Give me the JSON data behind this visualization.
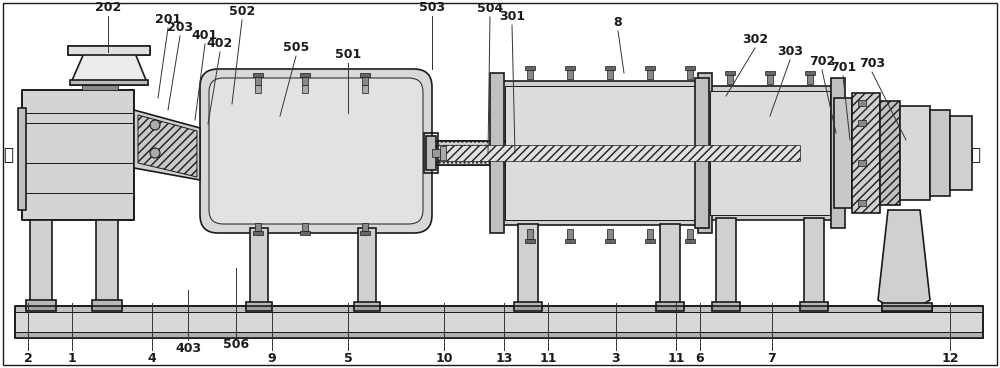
{
  "bg_color": "#ffffff",
  "lc": "#1a1a1a",
  "gray_light": "#e8e8e8",
  "gray_mid": "#d0d0d0",
  "gray_dark": "#a0a0a0",
  "gray_darker": "#606060",
  "hatch_gray": "#c8c8c8",
  "figsize": [
    10.0,
    3.68
  ],
  "dpi": 100,
  "font_size": 9,
  "top_labels": [
    [
      "202",
      108,
      316,
      108,
      352
    ],
    [
      "201",
      158,
      270,
      168,
      340
    ],
    [
      "203",
      168,
      258,
      180,
      332
    ],
    [
      "401",
      195,
      248,
      205,
      324
    ],
    [
      "402",
      208,
      244,
      220,
      316
    ],
    [
      "502",
      232,
      264,
      242,
      348
    ],
    [
      "505",
      280,
      252,
      296,
      312
    ],
    [
      "501",
      348,
      255,
      348,
      305
    ],
    [
      "503",
      432,
      299,
      432,
      352
    ],
    [
      "504",
      488,
      215,
      490,
      351
    ],
    [
      "301",
      515,
      215,
      512,
      343
    ],
    [
      "8",
      624,
      295,
      618,
      337
    ],
    [
      "302",
      726,
      272,
      755,
      320
    ],
    [
      "303",
      770,
      252,
      790,
      308
    ],
    [
      "702",
      836,
      235,
      822,
      298
    ],
    [
      "701",
      850,
      228,
      843,
      292
    ],
    [
      "703",
      906,
      228,
      872,
      296
    ]
  ],
  "bottom_labels": [
    [
      "2",
      28,
      65,
      28,
      18
    ],
    [
      "1",
      72,
      65,
      72,
      18
    ],
    [
      "4",
      152,
      65,
      152,
      18
    ],
    [
      "403",
      188,
      78,
      188,
      28
    ],
    [
      "506",
      236,
      100,
      236,
      32
    ],
    [
      "9",
      272,
      65,
      272,
      18
    ],
    [
      "5",
      348,
      65,
      348,
      18
    ],
    [
      "10",
      444,
      65,
      444,
      18
    ],
    [
      "13",
      504,
      65,
      504,
      18
    ],
    [
      "11",
      548,
      65,
      548,
      18
    ],
    [
      "3",
      616,
      65,
      616,
      18
    ],
    [
      "11",
      676,
      65,
      676,
      18
    ],
    [
      "6",
      700,
      65,
      700,
      18
    ],
    [
      "7",
      772,
      65,
      772,
      18
    ],
    [
      "12",
      950,
      65,
      950,
      18
    ]
  ]
}
